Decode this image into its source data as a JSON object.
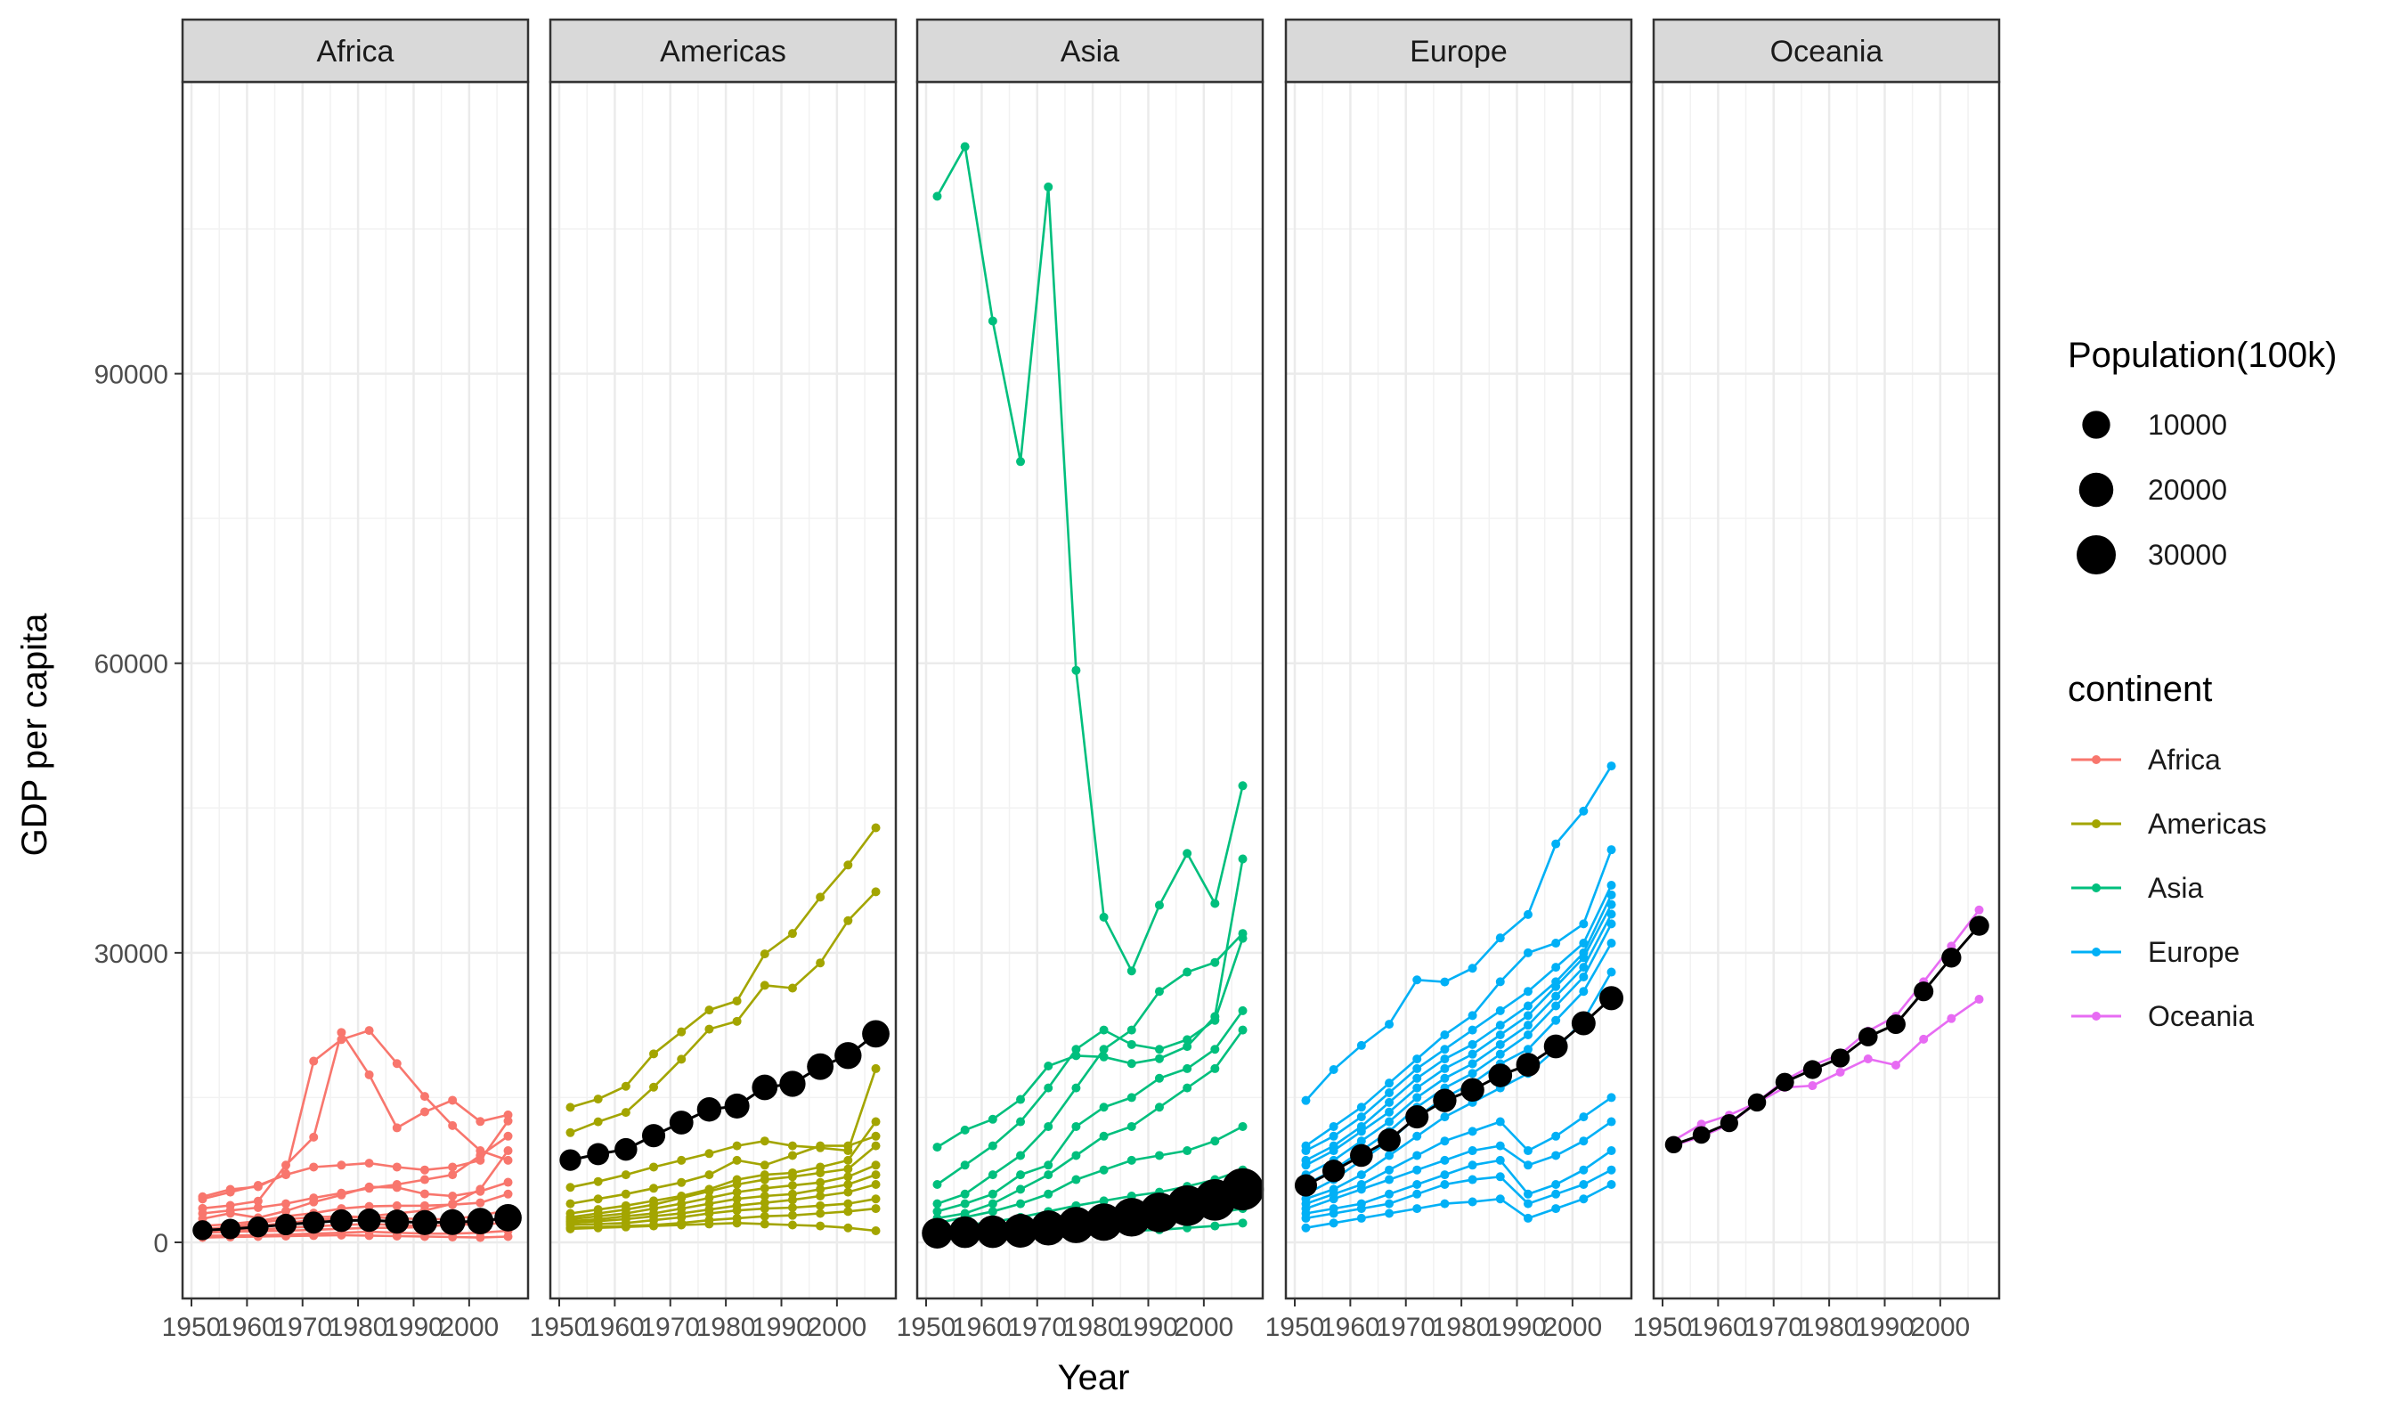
{
  "chart_data": {
    "type": "line",
    "facets": [
      "Africa",
      "Americas",
      "Asia",
      "Europe",
      "Oceania"
    ],
    "xlabel": "Year",
    "ylabel": "GDP per capita",
    "x_ticks": [
      "1950",
      "1960",
      "1970",
      "1980",
      "1990",
      "2000"
    ],
    "y_ticks": [
      "0",
      "30000",
      "60000",
      "90000"
    ],
    "xlim": [
      1950,
      2009
    ],
    "ylim": [
      0,
      117000
    ],
    "years": [
      1952,
      1957,
      1962,
      1967,
      1972,
      1977,
      1982,
      1987,
      1992,
      1997,
      2002,
      2007
    ],
    "grid": "on",
    "legend_placement": "right",
    "colors": {
      "Africa": "#F8766D",
      "Americas": "#A3A500",
      "Asia": "#00BF7D",
      "Europe": "#00B0F6",
      "Oceania": "#E76BF3",
      "weighted_mean": "#000000"
    },
    "size_legend": {
      "title": "Population(100k)",
      "entries": [
        {
          "label": "10000",
          "value": 10000
        },
        {
          "label": "20000",
          "value": 20000
        },
        {
          "label": "30000",
          "value": 30000
        }
      ]
    },
    "color_legend": {
      "title": "continent",
      "entries": [
        "Africa",
        "Americas",
        "Asia",
        "Europe",
        "Oceania"
      ]
    },
    "panels": [
      {
        "continent": "Africa",
        "countries": [
          [
            4725,
            5487,
            5769,
            7114,
            18772,
            21011,
            21951,
            18524,
            15119,
            12100,
            9500,
            8500
          ],
          [
            3521,
            3827,
            4270,
            8000,
            10900,
            21745,
            17364,
            11864,
            13522,
            14723,
            12522,
            13206
          ],
          [
            4490,
            5200,
            5900,
            7000,
            7800,
            8000,
            8200,
            7800,
            7500,
            7800,
            8500,
            12570
          ],
          [
            3000,
            3300,
            3600,
            4000,
            4600,
            5100,
            5600,
            6000,
            6500,
            7000,
            9000,
            11000
          ],
          [
            2449,
            3014,
            2551,
            3247,
            4183,
            4910,
            5745,
            5681,
            5023,
            4797,
            5288,
            6223
          ],
          [
            1400,
            1550,
            1700,
            2000,
            2300,
            2500,
            2700,
            3000,
            3300,
            4000,
            5500,
            9500
          ],
          [
            1687,
            1899,
            2194,
            2693,
            3030,
            3498,
            3727,
            3790,
            3800,
            3900,
            4100,
            5000
          ],
          [
            1300,
            1600,
            2000,
            2400,
            2600,
            2700,
            2600,
            2500,
            2400,
            2400,
            2800,
            3300
          ],
          [
            1000,
            1100,
            1150,
            1200,
            1300,
            1400,
            1500,
            1500,
            1600,
            1900,
            2100,
            2500
          ],
          [
            700,
            700,
            750,
            800,
            900,
            1000,
            1100,
            1000,
            900,
            900,
            1000,
            1200
          ],
          [
            500,
            550,
            600,
            650,
            700,
            750,
            700,
            650,
            600,
            550,
            500,
            600
          ],
          [
            1100,
            1200,
            1300,
            1500,
            1650,
            1800,
            1900,
            1800,
            1700,
            1800,
            1900,
            2000
          ]
        ],
        "mean": [
          1253,
          1385,
          1600,
          1850,
          2050,
          2250,
          2300,
          2150,
          2050,
          2100,
          2200,
          2550
        ],
        "pop": [
          2400,
          2700,
          3000,
          3400,
          3900,
          4400,
          5000,
          5700,
          6600,
          7400,
          8300,
          9300
        ]
      },
      {
        "continent": "Americas",
        "countries": [
          [
            13990,
            14847,
            16173,
            19530,
            21806,
            24073,
            25009,
            29884,
            32003,
            35767,
            39097,
            42952
          ],
          [
            11367,
            12490,
            13462,
            16077,
            18971,
            22091,
            22899,
            26627,
            26343,
            28955,
            33329,
            36319
          ],
          [
            5700,
            6300,
            7000,
            7800,
            8500,
            9200,
            10000,
            10500,
            10000,
            9800,
            9500,
            18000
          ],
          [
            4000,
            4500,
            5000,
            5600,
            6200,
            7000,
            8500,
            8000,
            9000,
            10000,
            10000,
            11000
          ],
          [
            3000,
            3400,
            3800,
            4300,
            4800,
            5500,
            6500,
            7000,
            7200,
            7800,
            8500,
            12500
          ],
          [
            2600,
            3000,
            3400,
            3900,
            4600,
            5300,
            6000,
            6500,
            6800,
            7200,
            7600,
            10000
          ],
          [
            2400,
            2700,
            3000,
            3500,
            4000,
            4600,
            5200,
            5600,
            5900,
            6200,
            6800,
            8000
          ],
          [
            2200,
            2400,
            2700,
            3000,
            3500,
            4000,
            4500,
            4800,
            5000,
            5500,
            6000,
            7000
          ],
          [
            2000,
            2200,
            2400,
            2700,
            3000,
            3400,
            3800,
            4100,
            4400,
            4800,
            5200,
            6000
          ],
          [
            1800,
            1900,
            2000,
            2300,
            2600,
            3000,
            3300,
            3500,
            3600,
            3800,
            4000,
            4500
          ],
          [
            1500,
            1600,
            1700,
            1800,
            2000,
            2300,
            2500,
            2700,
            2800,
            3000,
            3200,
            3500
          ],
          [
            1400,
            1500,
            1600,
            1700,
            1800,
            1900,
            2000,
            1900,
            1800,
            1700,
            1500,
            1200
          ]
        ],
        "mean": [
          8528,
          9141,
          9634,
          11059,
          12410,
          13770,
          14125,
          16055,
          16422,
          18210,
          19353,
          21600
        ],
        "pop": [
          3500,
          3900,
          4400,
          4900,
          5500,
          6000,
          6600,
          7200,
          7800,
          8400,
          8900,
          9400
        ]
      },
      {
        "continent": "Asia",
        "countries": [
          [
            108382,
            113523,
            95458,
            80895,
            109348,
            59265,
            33693,
            28118,
            34932,
            40301,
            35110,
            47307
          ],
          [
            9867,
            11636,
            12753,
            14805,
            18268,
            19340,
            19211,
            18524,
            19035,
            20292,
            23404,
            39725
          ],
          [
            6000,
            8000,
            10000,
            12500,
            16000,
            20000,
            22000,
            20500,
            20000,
            21000,
            23000,
            31500
          ],
          [
            4000,
            5000,
            7000,
            9000,
            12000,
            16000,
            20000,
            22000,
            26000,
            28000,
            29000,
            32000
          ],
          [
            3200,
            4000,
            5000,
            7000,
            8000,
            12000,
            14000,
            15000,
            17000,
            18000,
            20000,
            24000
          ],
          [
            2500,
            3000,
            4000,
            5500,
            7000,
            9000,
            11000,
            12000,
            14000,
            16000,
            18000,
            22000
          ],
          [
            2000,
            2600,
            3200,
            4000,
            5000,
            6500,
            7500,
            8500,
            9000,
            9500,
            10500,
            12000
          ],
          [
            1500,
            1800,
            2100,
            2600,
            3200,
            3800,
            4300,
            4800,
            5200,
            5800,
            6500,
            7500
          ],
          [
            1200,
            1400,
            1700,
            2000,
            2400,
            2800,
            3100,
            3400,
            3800,
            4200,
            4800,
            5500
          ],
          [
            800,
            900,
            1000,
            1200,
            1400,
            1600,
            1800,
            2000,
            2300,
            2600,
            3000,
            3500
          ],
          [
            500,
            600,
            700,
            800,
            900,
            1000,
            1100,
            1200,
            1300,
            1500,
            1700,
            2000
          ]
        ],
        "mean": [
          950,
          1050,
          1100,
          1200,
          1500,
          1800,
          2100,
          2600,
          3100,
          3800,
          4400,
          5500
        ],
        "pop": [
          14000,
          15600,
          17000,
          19200,
          21700,
          24000,
          26300,
          28800,
          31200,
          33400,
          35300,
          37100
        ]
      },
      {
        "continent": "Europe",
        "countries": [
          [
            14700,
            17900,
            20400,
            22600,
            27195,
            26982,
            28397,
            31540,
            33965,
            41283,
            44684,
            49357
          ],
          [
            10000,
            12000,
            14000,
            16500,
            19000,
            21500,
            23500,
            27000,
            30000,
            31000,
            33000,
            40675
          ],
          [
            9500,
            11000,
            13000,
            15500,
            18000,
            20000,
            22000,
            24000,
            26000,
            28500,
            31000,
            37000
          ],
          [
            8500,
            10000,
            12000,
            14500,
            17000,
            19000,
            20500,
            22500,
            24500,
            27000,
            30000,
            36000
          ],
          [
            8000,
            9500,
            11500,
            13500,
            16000,
            18000,
            19500,
            21500,
            23500,
            26500,
            29500,
            35000
          ],
          [
            7000,
            8500,
            10500,
            12500,
            15000,
            17000,
            18500,
            20500,
            22500,
            25500,
            28500,
            34000
          ],
          [
            6000,
            7500,
            9500,
            11500,
            14000,
            16000,
            17500,
            19500,
            21500,
            24500,
            27500,
            33000
          ],
          [
            5000,
            6500,
            8500,
            10500,
            13000,
            15000,
            16500,
            18500,
            20000,
            23000,
            26000,
            31000
          ],
          [
            4500,
            5500,
            7000,
            9000,
            11000,
            13000,
            14500,
            16000,
            17500,
            20000,
            23000,
            28000
          ],
          [
            4000,
            5000,
            6000,
            7500,
            9000,
            10500,
            11500,
            12500,
            9500,
            11000,
            13000,
            15000
          ],
          [
            3500,
            4500,
            5500,
            6500,
            7500,
            8500,
            9500,
            10000,
            8000,
            9000,
            10500,
            12500
          ],
          [
            3000,
            3500,
            4000,
            5000,
            6000,
            7000,
            8000,
            8500,
            5000,
            6000,
            7500,
            9500
          ],
          [
            2500,
            3000,
            3500,
            4000,
            5000,
            6000,
            6500,
            6800,
            4000,
            5000,
            6000,
            7500
          ],
          [
            1500,
            2000,
            2500,
            3000,
            3500,
            4000,
            4200,
            4500,
            2500,
            3500,
            4500,
            6000
          ]
        ],
        "mean": [
          5900,
          7400,
          9000,
          10600,
          13000,
          14700,
          15800,
          17300,
          18400,
          20300,
          22700,
          25300
        ],
        "pop": [
          4100,
          4300,
          4500,
          4700,
          4900,
          5100,
          5200,
          5300,
          5400,
          5500,
          5600,
          5700
        ]
      },
      {
        "continent": "Oceania",
        "countries": [
          [
            10040,
            10950,
            12217,
            14527,
            16789,
            18334,
            19477,
            21889,
            23425,
            26998,
            30688,
            34435
          ],
          [
            10557,
            12247,
            13176,
            14464,
            16046,
            16234,
            17632,
            19007,
            18363,
            21050,
            23190,
            25185
          ]
        ],
        "mean": [
          10120,
          11130,
          12350,
          14500,
          16600,
          17900,
          19100,
          21300,
          22600,
          26000,
          29500,
          32800
        ],
        "pop": [
          1000,
          1100,
          1300,
          1400,
          1600,
          1700,
          1800,
          1900,
          2100,
          2200,
          2300,
          2400
        ]
      }
    ]
  }
}
